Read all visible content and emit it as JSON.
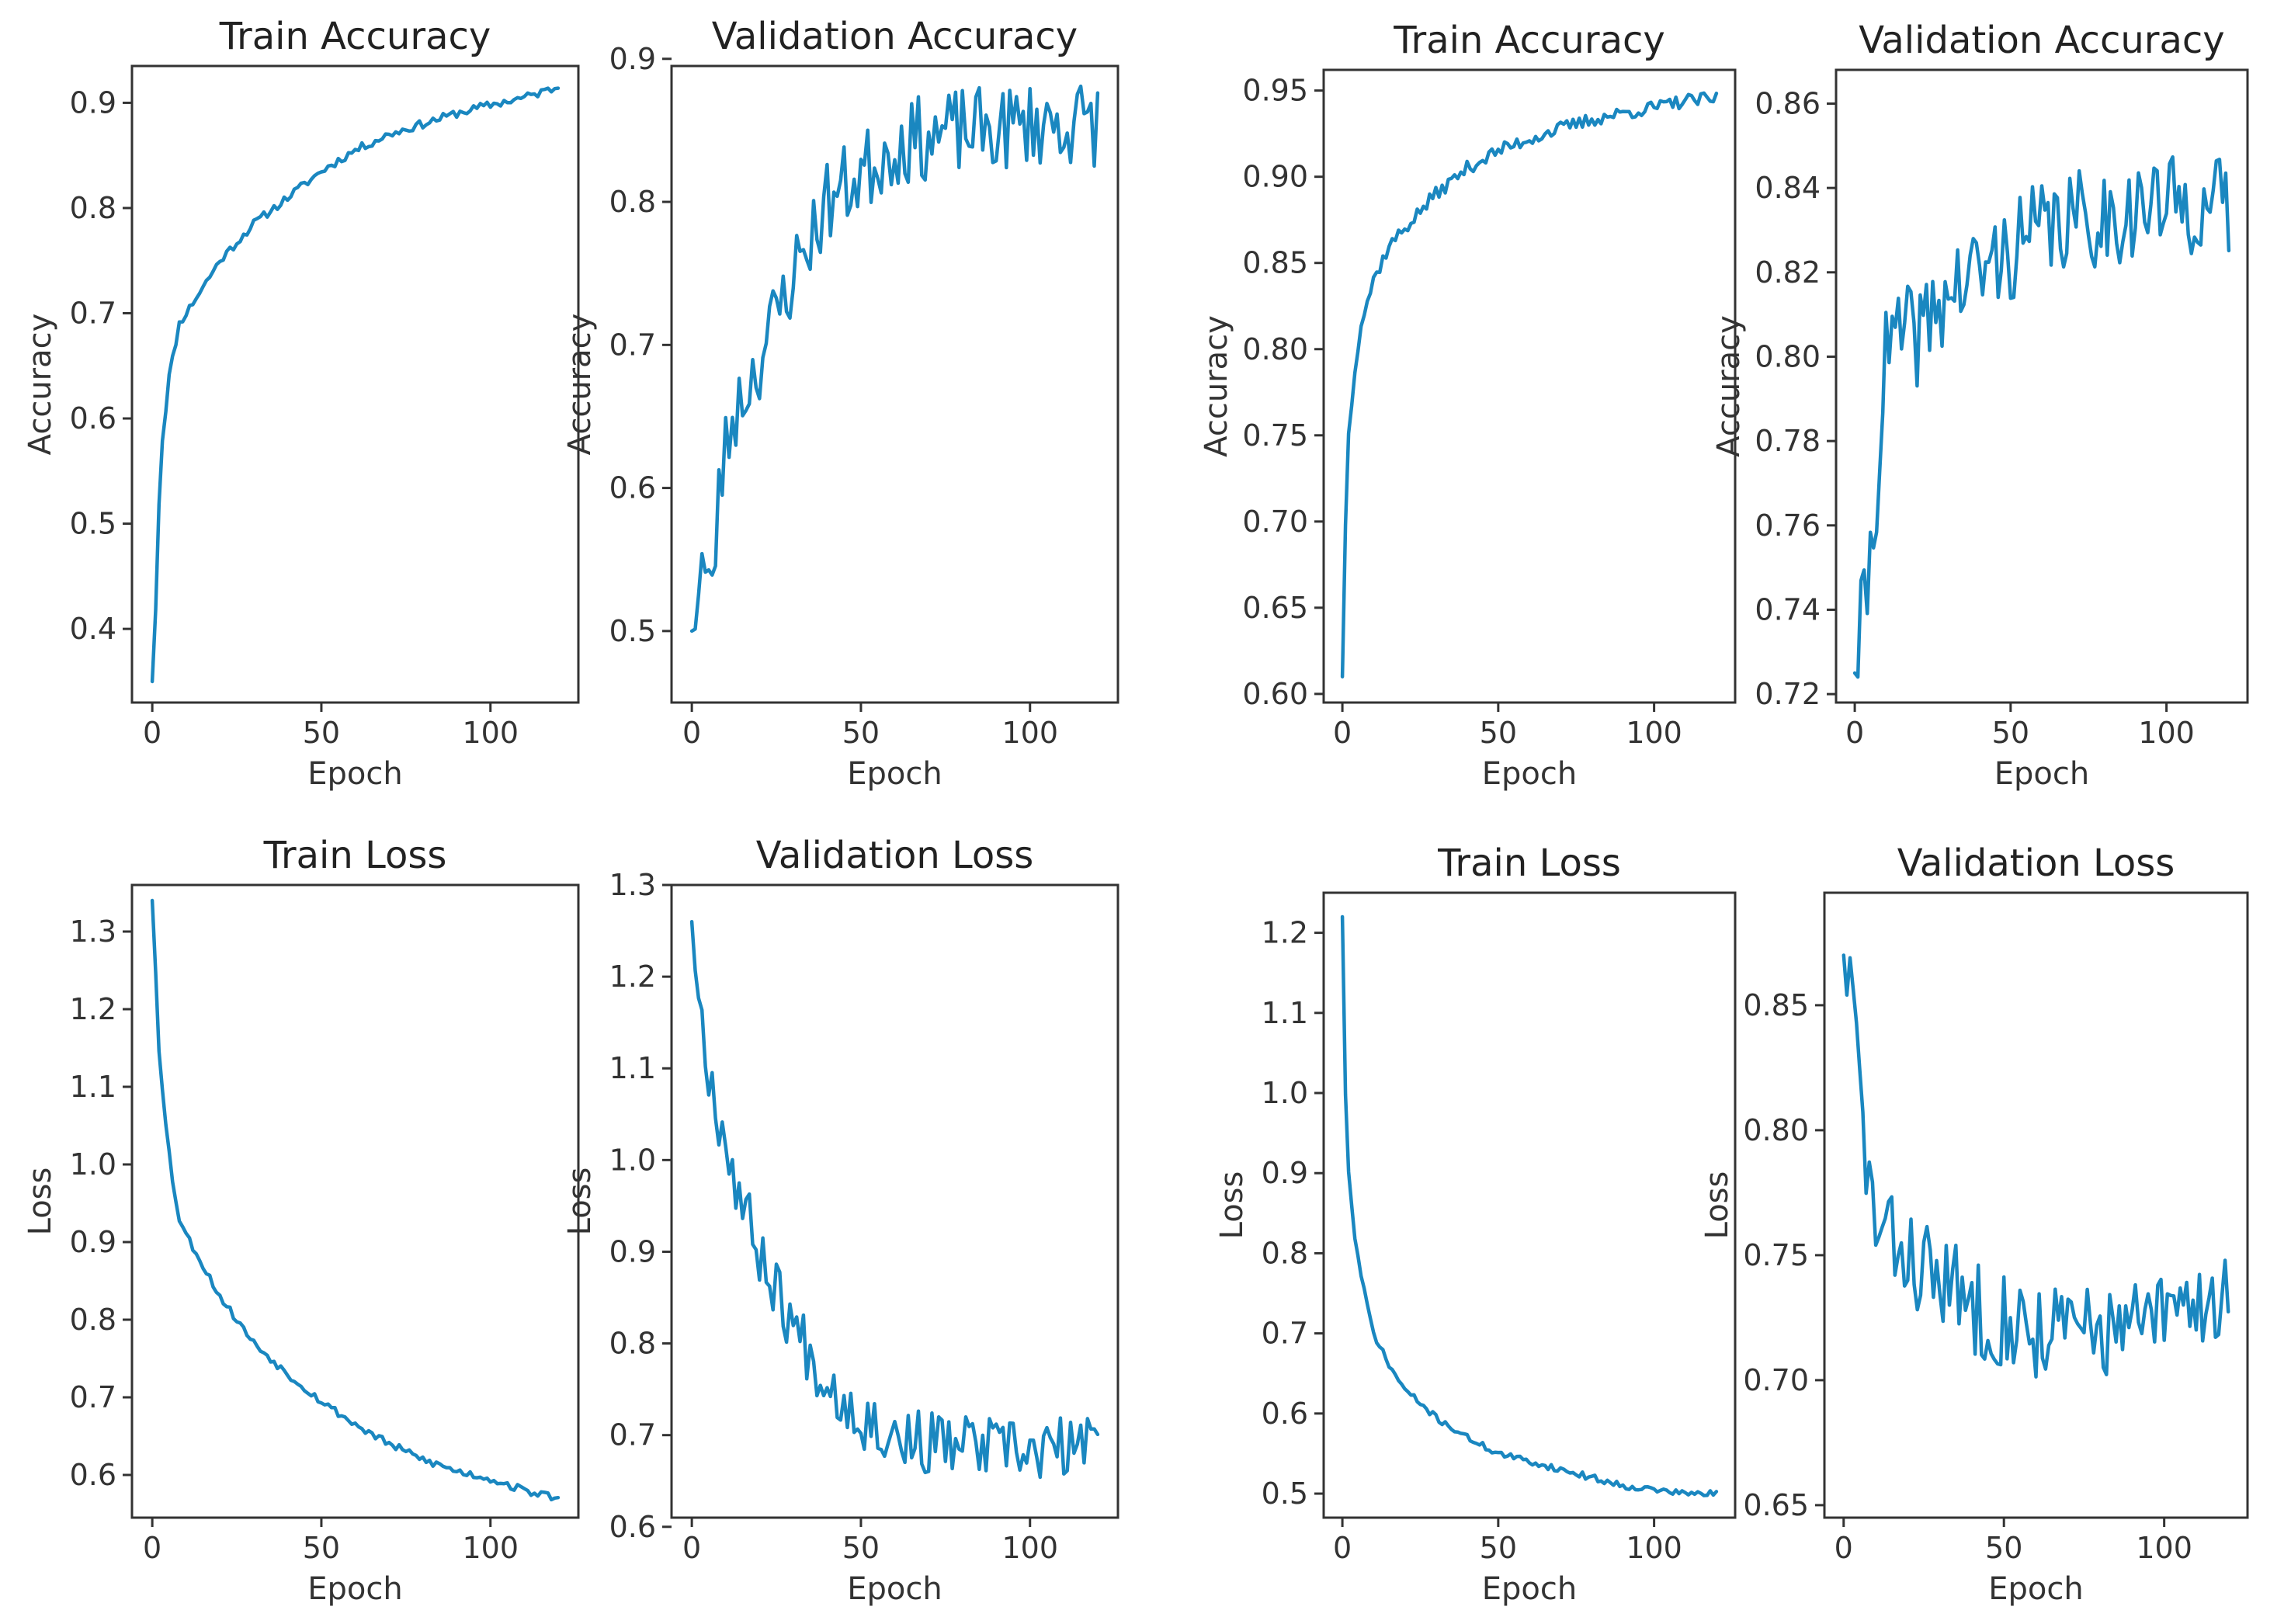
{
  "chart_data": [
    {
      "type": "line",
      "title": "Train Accuracy",
      "xlabel": "Epoch",
      "ylabel": "Accuracy",
      "xlim": [
        -6,
        126
      ],
      "ylim": [
        0.33,
        0.935
      ],
      "xticks": [
        0,
        50,
        100
      ],
      "xtick_labels": [
        "0",
        "50",
        "100"
      ],
      "yticks": [
        0.4,
        0.5,
        0.6,
        0.7,
        0.8,
        0.9
      ],
      "ytick_labels": [
        "0.4",
        "0.5",
        "0.6",
        "0.7",
        "0.8",
        "0.9"
      ],
      "series": [
        {
          "name": "accuracy",
          "color": "#1a87c0",
          "anchors": [
            [
              0,
              0.35
            ],
            [
              1,
              0.42
            ],
            [
              2,
              0.52
            ],
            [
              3,
              0.58
            ],
            [
              5,
              0.64
            ],
            [
              8,
              0.69
            ],
            [
              12,
              0.71
            ],
            [
              20,
              0.75
            ],
            [
              30,
              0.785
            ],
            [
              40,
              0.81
            ],
            [
              50,
              0.835
            ],
            [
              60,
              0.855
            ],
            [
              70,
              0.87
            ],
            [
              80,
              0.88
            ],
            [
              90,
              0.89
            ],
            [
              100,
              0.898
            ],
            [
              110,
              0.905
            ],
            [
              120,
              0.915
            ]
          ],
          "noise": 0.004,
          "seed": 11
        }
      ]
    },
    {
      "type": "line",
      "title": "Validation Accuracy",
      "xlabel": "Epoch",
      "ylabel": "Accuracy",
      "xlim": [
        -6,
        126
      ],
      "ylim": [
        0.45,
        0.895
      ],
      "xticks": [
        0,
        50,
        100
      ],
      "xtick_labels": [
        "0",
        "50",
        "100"
      ],
      "yticks": [
        0.5,
        0.6,
        0.7,
        0.8,
        0.9
      ],
      "ytick_labels": [
        "0.5",
        "0.6",
        "0.7",
        "0.8",
        "0.9"
      ],
      "series": [
        {
          "name": "val_accuracy",
          "color": "#1a87c0",
          "anchors": [
            [
              0,
              0.5
            ],
            [
              3,
              0.55
            ],
            [
              6,
              0.52
            ],
            [
              8,
              0.6
            ],
            [
              12,
              0.65
            ],
            [
              20,
              0.69
            ],
            [
              30,
              0.75
            ],
            [
              40,
              0.8
            ],
            [
              50,
              0.82
            ],
            [
              60,
              0.84
            ],
            [
              70,
              0.845
            ],
            [
              80,
              0.85
            ],
            [
              90,
              0.85
            ],
            [
              100,
              0.855
            ],
            [
              110,
              0.855
            ],
            [
              120,
              0.855
            ]
          ],
          "noise": 0.03,
          "seed": 23
        }
      ]
    },
    {
      "type": "line",
      "title": "Train Accuracy",
      "xlabel": "Epoch",
      "ylabel": "Accuracy",
      "xlim": [
        -6,
        126
      ],
      "ylim": [
        0.595,
        0.962
      ],
      "xticks": [
        0,
        50,
        100
      ],
      "xtick_labels": [
        "0",
        "50",
        "100"
      ],
      "yticks": [
        0.6,
        0.65,
        0.7,
        0.75,
        0.8,
        0.85,
        0.9,
        0.95
      ],
      "ytick_labels": [
        "0.60",
        "0.65",
        "0.70",
        "0.75",
        "0.80",
        "0.85",
        "0.90",
        "0.95"
      ],
      "series": [
        {
          "name": "accuracy",
          "color": "#1a87c0",
          "anchors": [
            [
              0,
              0.61
            ],
            [
              1,
              0.7
            ],
            [
              2,
              0.75
            ],
            [
              4,
              0.79
            ],
            [
              6,
              0.815
            ],
            [
              10,
              0.84
            ],
            [
              15,
              0.86
            ],
            [
              20,
              0.87
            ],
            [
              30,
              0.89
            ],
            [
              40,
              0.905
            ],
            [
              50,
              0.915
            ],
            [
              60,
              0.922
            ],
            [
              70,
              0.928
            ],
            [
              80,
              0.933
            ],
            [
              90,
              0.937
            ],
            [
              100,
              0.94
            ],
            [
              110,
              0.944
            ],
            [
              120,
              0.945
            ]
          ],
          "noise": 0.004,
          "seed": 37
        }
      ]
    },
    {
      "type": "line",
      "title": "Validation Accuracy",
      "xlabel": "Epoch",
      "ylabel": "Accuracy",
      "xlim": [
        -6,
        126
      ],
      "ylim": [
        0.718,
        0.868
      ],
      "xticks": [
        0,
        50,
        100
      ],
      "xtick_labels": [
        "0",
        "50",
        "100"
      ],
      "yticks": [
        0.72,
        0.74,
        0.76,
        0.78,
        0.8,
        0.82,
        0.84,
        0.86
      ],
      "ytick_labels": [
        "0.72",
        "0.74",
        "0.76",
        "0.78",
        "0.80",
        "0.82",
        "0.84",
        "0.86"
      ],
      "series": [
        {
          "name": "val_accuracy",
          "color": "#1a87c0",
          "anchors": [
            [
              0,
              0.725
            ],
            [
              3,
              0.74
            ],
            [
              6,
              0.76
            ],
            [
              8,
              0.78
            ],
            [
              10,
              0.8
            ],
            [
              15,
              0.805
            ],
            [
              20,
              0.805
            ],
            [
              30,
              0.815
            ],
            [
              40,
              0.82
            ],
            [
              50,
              0.825
            ],
            [
              60,
              0.83
            ],
            [
              70,
              0.832
            ],
            [
              80,
              0.833
            ],
            [
              90,
              0.835
            ],
            [
              100,
              0.836
            ],
            [
              110,
              0.836
            ],
            [
              120,
              0.835
            ]
          ],
          "noise": 0.012,
          "seed": 41
        }
      ]
    },
    {
      "type": "line",
      "title": "Train Loss",
      "xlabel": "Epoch",
      "ylabel": "Loss",
      "xlim": [
        -6,
        126
      ],
      "ylim": [
        0.545,
        1.36
      ],
      "xticks": [
        0,
        50,
        100
      ],
      "xtick_labels": [
        "0",
        "50",
        "100"
      ],
      "yticks": [
        0.6,
        0.7,
        0.8,
        0.9,
        1.0,
        1.1,
        1.2,
        1.3
      ],
      "ytick_labels": [
        "0.6",
        "0.7",
        "0.8",
        "0.9",
        "1.0",
        "1.1",
        "1.2",
        "1.3"
      ],
      "series": [
        {
          "name": "loss",
          "color": "#1a87c0",
          "anchors": [
            [
              0,
              1.34
            ],
            [
              1,
              1.25
            ],
            [
              2,
              1.15
            ],
            [
              4,
              1.05
            ],
            [
              6,
              0.98
            ],
            [
              8,
              0.93
            ],
            [
              10,
              0.91
            ],
            [
              15,
              0.87
            ],
            [
              20,
              0.83
            ],
            [
              30,
              0.77
            ],
            [
              40,
              0.73
            ],
            [
              50,
              0.695
            ],
            [
              60,
              0.665
            ],
            [
              70,
              0.64
            ],
            [
              80,
              0.62
            ],
            [
              90,
              0.605
            ],
            [
              100,
              0.595
            ],
            [
              110,
              0.58
            ],
            [
              120,
              0.57
            ]
          ],
          "noise": 0.005,
          "seed": 53
        }
      ]
    },
    {
      "type": "line",
      "title": "Validation Loss",
      "xlabel": "Epoch",
      "ylabel": "Loss",
      "xlim": [
        -6,
        126
      ],
      "ylim": [
        0.61,
        1.3
      ],
      "xticks": [
        0,
        50,
        100
      ],
      "xtick_labels": [
        "0",
        "50",
        "100"
      ],
      "yticks": [
        0.6,
        0.7,
        0.8,
        0.9,
        1.0,
        1.1,
        1.2,
        1.3
      ],
      "ytick_labels": [
        "0.6",
        "0.7",
        "0.8",
        "0.9",
        "1.0",
        "1.1",
        "1.2",
        "1.3"
      ],
      "series": [
        {
          "name": "val_loss",
          "color": "#1a87c0",
          "anchors": [
            [
              0,
              1.26
            ],
            [
              3,
              1.15
            ],
            [
              6,
              1.08
            ],
            [
              10,
              1.02
            ],
            [
              15,
              0.95
            ],
            [
              20,
              0.9
            ],
            [
              30,
              0.82
            ],
            [
              40,
              0.76
            ],
            [
              50,
              0.72
            ],
            [
              60,
              0.7
            ],
            [
              70,
              0.69
            ],
            [
              80,
              0.69
            ],
            [
              90,
              0.685
            ],
            [
              100,
              0.68
            ],
            [
              110,
              0.685
            ],
            [
              120,
              0.69
            ]
          ],
          "noise": 0.035,
          "seed": 67
        }
      ]
    },
    {
      "type": "line",
      "title": "Train Loss",
      "xlabel": "Epoch",
      "ylabel": "Loss",
      "xlim": [
        -6,
        126
      ],
      "ylim": [
        0.47,
        1.25
      ],
      "xticks": [
        0,
        50,
        100
      ],
      "xtick_labels": [
        "0",
        "50",
        "100"
      ],
      "yticks": [
        0.5,
        0.6,
        0.7,
        0.8,
        0.9,
        1.0,
        1.1,
        1.2
      ],
      "ytick_labels": [
        "0.5",
        "0.6",
        "0.7",
        "0.8",
        "0.9",
        "1.0",
        "1.1",
        "1.2"
      ],
      "series": [
        {
          "name": "loss",
          "color": "#1a87c0",
          "anchors": [
            [
              0,
              1.22
            ],
            [
              1,
              1.0
            ],
            [
              2,
              0.9
            ],
            [
              4,
              0.82
            ],
            [
              6,
              0.77
            ],
            [
              10,
              0.7
            ],
            [
              15,
              0.66
            ],
            [
              20,
              0.63
            ],
            [
              30,
              0.595
            ],
            [
              40,
              0.57
            ],
            [
              50,
              0.55
            ],
            [
              60,
              0.54
            ],
            [
              70,
              0.53
            ],
            [
              80,
              0.52
            ],
            [
              90,
              0.51
            ],
            [
              100,
              0.505
            ],
            [
              110,
              0.5
            ],
            [
              120,
              0.5
            ]
          ],
          "noise": 0.004,
          "seed": 71
        }
      ]
    },
    {
      "type": "line",
      "title": "Validation Loss",
      "xlabel": "Epoch",
      "ylabel": "Loss",
      "xlim": [
        -6,
        126
      ],
      "ylim": [
        0.645,
        0.895
      ],
      "xticks": [
        0,
        50,
        100
      ],
      "xtick_labels": [
        "0",
        "50",
        "100"
      ],
      "yticks": [
        0.65,
        0.7,
        0.75,
        0.8,
        0.85
      ],
      "ytick_labels": [
        "0.65",
        "0.70",
        "0.75",
        "0.80",
        "0.85"
      ],
      "series": [
        {
          "name": "val_loss",
          "color": "#1a87c0",
          "anchors": [
            [
              0,
              0.87
            ],
            [
              3,
              0.85
            ],
            [
              6,
              0.8
            ],
            [
              10,
              0.76
            ],
            [
              15,
              0.755
            ],
            [
              20,
              0.75
            ],
            [
              30,
              0.74
            ],
            [
              40,
              0.73
            ],
            [
              50,
              0.725
            ],
            [
              60,
              0.72
            ],
            [
              70,
              0.72
            ],
            [
              80,
              0.72
            ],
            [
              90,
              0.72
            ],
            [
              100,
              0.725
            ],
            [
              110,
              0.73
            ],
            [
              120,
              0.735
            ]
          ],
          "noise": 0.02,
          "seed": 83
        }
      ]
    }
  ]
}
